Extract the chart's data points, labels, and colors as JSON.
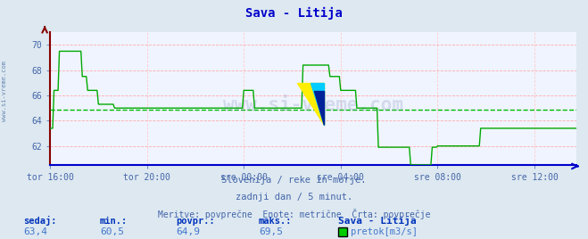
{
  "title": "Sava - Litija",
  "title_color": "#0000cc",
  "bg_color": "#dde8f0",
  "plot_bg_color": "#f0f4ff",
  "grid_color_h": "#ffaaaa",
  "grid_color_v": "#ffcccc",
  "avg_line_color": "#00bb00",
  "avg_value": 64.9,
  "line_color": "#00aa00",
  "line_width": 1.2,
  "tick_color": "#4466aa",
  "xaxis_color": "#0000cc",
  "yaxis_color": "#880000",
  "ylim": [
    60.5,
    71.0
  ],
  "yticks": [
    62,
    64,
    66,
    68,
    70
  ],
  "xtick_labels": [
    "tor 16:00",
    "tor 20:00",
    "sre 00:00",
    "sre 04:00",
    "sre 08:00",
    "sre 12:00"
  ],
  "xtick_positions": [
    0,
    72,
    144,
    216,
    288,
    360
  ],
  "total_points": 432,
  "subtitle1": "Slovenija / reke in morje.",
  "subtitle2": "zadnji dan / 5 minut.",
  "subtitle3": "Meritve: povprečne  Enote: metrične  Črta: povprečje",
  "footer_bold_color": "#0033bb",
  "footer_val_color": "#4477cc",
  "footer_labels": [
    "sedaj:",
    "min.:",
    "povpr.:",
    "maks.:",
    "Sava - Litija"
  ],
  "footer_values": [
    "63,4",
    "60,5",
    "64,9",
    "69,5"
  ],
  "legend_label": "pretok[m3/s]",
  "legend_color": "#00cc00",
  "watermark": "www.si-vreme.com",
  "left_label": "www.si-vreme.com",
  "subtitle_color": "#4466aa",
  "data_y": [
    63.4,
    63.4,
    63.4,
    66.4,
    66.4,
    66.4,
    66.4,
    69.5,
    69.5,
    69.5,
    69.5,
    69.5,
    69.5,
    69.5,
    69.5,
    69.5,
    69.5,
    69.5,
    69.5,
    69.5,
    69.5,
    69.5,
    69.5,
    69.5,
    67.5,
    67.5,
    67.5,
    67.5,
    66.4,
    66.4,
    66.4,
    66.4,
    66.4,
    66.4,
    66.4,
    66.4,
    65.3,
    65.3,
    65.3,
    65.3,
    65.3,
    65.3,
    65.3,
    65.3,
    65.3,
    65.3,
    65.3,
    65.3,
    65.0,
    65.0,
    65.0,
    65.0,
    65.0,
    65.0,
    65.0,
    65.0,
    65.0,
    65.0,
    65.0,
    65.0,
    65.0,
    65.0,
    65.0,
    65.0,
    65.0,
    65.0,
    65.0,
    65.0,
    65.0,
    65.0,
    65.0,
    65.0,
    65.0,
    65.0,
    65.0,
    65.0,
    65.0,
    65.0,
    65.0,
    65.0,
    65.0,
    65.0,
    65.0,
    65.0,
    65.0,
    65.0,
    65.0,
    65.0,
    65.0,
    65.0,
    65.0,
    65.0,
    65.0,
    65.0,
    65.0,
    65.0,
    65.0,
    65.0,
    65.0,
    65.0,
    65.0,
    65.0,
    65.0,
    65.0,
    65.0,
    65.0,
    65.0,
    65.0,
    65.0,
    65.0,
    65.0,
    65.0,
    65.0,
    65.0,
    65.0,
    65.0,
    65.0,
    65.0,
    65.0,
    65.0,
    65.0,
    65.0,
    65.0,
    65.0,
    65.0,
    65.0,
    65.0,
    65.0,
    65.0,
    65.0,
    65.0,
    65.0,
    65.0,
    65.0,
    65.0,
    65.0,
    65.0,
    65.0,
    65.0,
    65.0,
    65.0,
    65.0,
    65.0,
    65.0,
    66.4,
    66.4,
    66.4,
    66.4,
    66.4,
    66.4,
    66.4,
    66.4,
    65.0,
    65.0,
    65.0,
    65.0,
    65.0,
    65.0,
    65.0,
    65.0,
    65.0,
    65.0,
    65.0,
    65.0,
    65.0,
    65.0,
    65.0,
    65.0,
    65.0,
    65.0,
    65.0,
    65.0,
    65.0,
    65.0,
    65.0,
    65.0,
    65.0,
    65.0,
    65.0,
    65.0,
    65.0,
    65.0,
    65.0,
    65.0,
    65.0,
    65.0,
    65.0,
    65.0,
    68.4,
    68.4,
    68.4,
    68.4,
    68.4,
    68.4,
    68.4,
    68.4,
    68.4,
    68.4,
    68.4,
    68.4,
    68.4,
    68.4,
    68.4,
    68.4,
    68.4,
    68.4,
    68.4,
    68.4,
    67.5,
    67.5,
    67.5,
    67.5,
    67.5,
    67.5,
    67.5,
    67.5,
    66.4,
    66.4,
    66.4,
    66.4,
    66.4,
    66.4,
    66.4,
    66.4,
    66.4,
    66.4,
    66.4,
    66.4,
    65.0,
    65.0,
    65.0,
    65.0,
    65.0,
    65.0,
    65.0,
    65.0,
    65.0,
    65.0,
    65.0,
    65.0,
    65.0,
    65.0,
    65.0,
    65.0,
    61.9,
    61.9,
    61.9,
    61.9,
    61.9,
    61.9,
    61.9,
    61.9,
    61.9,
    61.9,
    61.9,
    61.9,
    61.9,
    61.9,
    61.9,
    61.9,
    61.9,
    61.9,
    61.9,
    61.9,
    61.9,
    61.9,
    61.9,
    61.9,
    60.5,
    60.5,
    60.5,
    60.5,
    60.5,
    60.5,
    60.5,
    60.5,
    60.5,
    60.5,
    60.5,
    60.5,
    60.5,
    60.5,
    60.5,
    60.5,
    61.9,
    61.9,
    61.9,
    61.9,
    62.0,
    62.0,
    62.0,
    62.0,
    62.0,
    62.0,
    62.0,
    62.0,
    62.0,
    62.0,
    62.0,
    62.0,
    62.0,
    62.0,
    62.0,
    62.0,
    62.0,
    62.0,
    62.0,
    62.0,
    62.0,
    62.0,
    62.0,
    62.0,
    62.0,
    62.0,
    62.0,
    62.0,
    62.0,
    62.0,
    62.0,
    62.0,
    63.4,
    63.4,
    63.4,
    63.4,
    63.4,
    63.4,
    63.4,
    63.4,
    63.4,
    63.4,
    63.4,
    63.4,
    63.4,
    63.4,
    63.4,
    63.4,
    63.4,
    63.4,
    63.4,
    63.4,
    63.4,
    63.4,
    63.4,
    63.4,
    63.4,
    63.4,
    63.4,
    63.4,
    63.4,
    63.4,
    63.4,
    63.4,
    63.4,
    63.4,
    63.4,
    63.4,
    63.4,
    63.4,
    63.4,
    63.4,
    63.4,
    63.4,
    63.4,
    63.4,
    63.4,
    63.4,
    63.4,
    63.4,
    63.4,
    63.4,
    63.4,
    63.4,
    63.4,
    63.4,
    63.4,
    63.4,
    63.4,
    63.4,
    63.4,
    63.4,
    63.4,
    63.4,
    63.4,
    63.4,
    63.4,
    63.4,
    63.4,
    63.4,
    63.4,
    63.4,
    63.4,
    63.4
  ]
}
